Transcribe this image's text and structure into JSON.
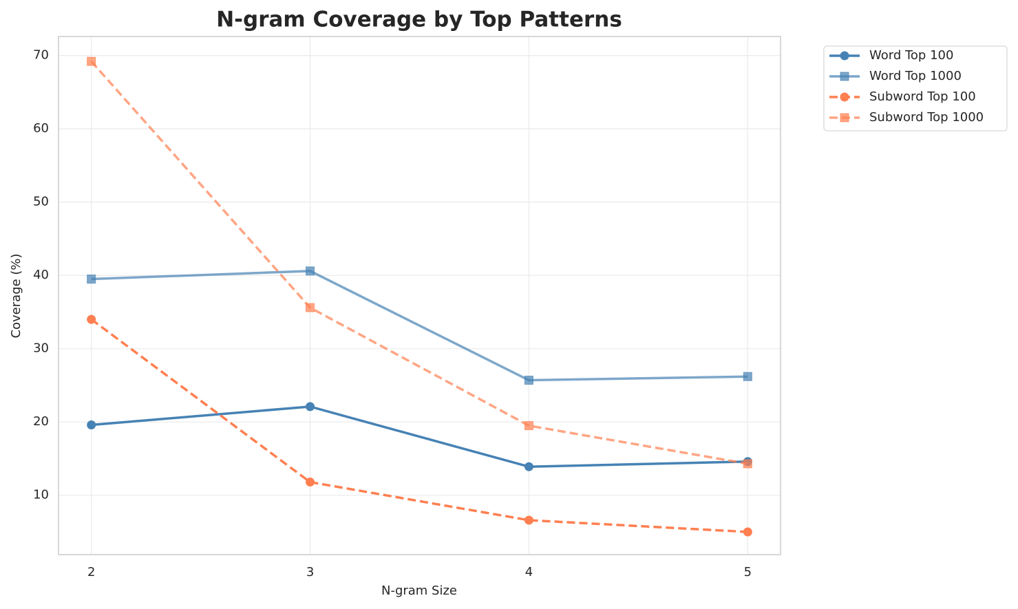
{
  "chart_data": {
    "type": "line",
    "title": "N-gram Coverage by Top Patterns",
    "x_label": "N-gram Size",
    "y_label": "Coverage (%)",
    "x": [
      2,
      3,
      4,
      5
    ],
    "series": [
      {
        "name": "Word Top 100",
        "color": "#4682b4",
        "opacity": 1,
        "marker": "circle",
        "dashed": false,
        "values": [
          19.6,
          22.1,
          13.9,
          14.6
        ]
      },
      {
        "name": "Word Top 1000",
        "color": "#4682b4",
        "opacity": 0.7,
        "marker": "square",
        "dashed": false,
        "values": [
          39.5,
          40.6,
          25.7,
          26.2
        ]
      },
      {
        "name": "Subword Top 100",
        "color": "#ff7f50",
        "opacity": 1,
        "marker": "circle",
        "dashed": true,
        "values": [
          34.0,
          11.8,
          6.6,
          5.0
        ]
      },
      {
        "name": "Subword Top 1000",
        "color": "#ff7f50",
        "opacity": 0.7,
        "marker": "square",
        "dashed": true,
        "values": [
          69.2,
          35.6,
          19.5,
          14.3
        ]
      }
    ],
    "xlim": [
      1.85,
      5.15
    ],
    "ylim": [
      1.9,
      72.6
    ],
    "xticks": [
      2,
      3,
      4,
      5
    ],
    "yticks": [
      10,
      20,
      30,
      40,
      50,
      60,
      70
    ],
    "grid": true,
    "legend": "outside upper right"
  }
}
